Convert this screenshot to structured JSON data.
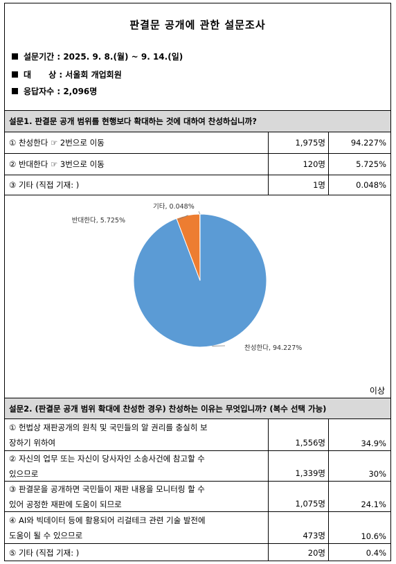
{
  "title": "판결문 공개에 관한 설문조사",
  "info": {
    "period": "설문기간 : 2025. 9. 8.(월) ~ 9. 14.(일)",
    "target": "대      상 : 서울회 개업회원",
    "respondents": "응답자수 : 2,096명"
  },
  "q1": {
    "question": "설문1. 판결문 공개 범위를 현행보다 확대하는 것에 대하여 찬성하십니까?",
    "rows": [
      {
        "label": "① 찬성한다 ☞ 2번으로 이동",
        "count": "1,975명",
        "percent": "94.227%"
      },
      {
        "label": "② 반대한다 ☞ 3번으로 이동",
        "count": "120명",
        "percent": "5.725%"
      },
      {
        "label": "③ 기타 (직접 기재: )",
        "count": "1명",
        "percent": "0.048%"
      }
    ]
  },
  "chart_data": {
    "type": "pie",
    "categories": [
      "찬성한다",
      "반대한다",
      "기타"
    ],
    "values": [
      94.227,
      5.725,
      0.048
    ],
    "labels": [
      "찬성한다, 94.227%",
      "반대한다, 5.725%",
      "기타, 0.048%"
    ],
    "colors": [
      "#5b9bd5",
      "#ed7d31",
      "#a5a5a5"
    ]
  },
  "more_label": "이상",
  "q2": {
    "question": "설문2. (판결문 공개 범위 확대에 찬성한 경우) 찬성하는 이유는 무엇입니까? (복수 선택 가능)",
    "rows": [
      {
        "line1": "① 헌법상 재판공개의 원칙 및 국민들의 알 권리를 충실히 보",
        "line2": "장하기 위하여",
        "count": "1,556명",
        "percent": "34.9%"
      },
      {
        "line1": "② 자신의 업무 또는 자신이 당사자인 소송사건에 참고할 수",
        "line2": "있으므로",
        "count": "1,339명",
        "percent": "30%"
      },
      {
        "line1": "③ 판결문을 공개하면 국민들이 재판 내용을 모니터링 할 수",
        "line2": "있어 공정한 재판에 도움이 되므로",
        "count": "1,075명",
        "percent": "24.1%"
      },
      {
        "line1": "④ AI와 빅데이터 등에 활용되어 리걸테크 관련 기술 발전에",
        "line2": "도움이 될 수 있으므로",
        "count": "473명",
        "percent": "10.6%"
      },
      {
        "line1": "⑤ 기타 (직접 기재: )",
        "line2": "",
        "count": "20명",
        "percent": "0.4%"
      }
    ]
  }
}
